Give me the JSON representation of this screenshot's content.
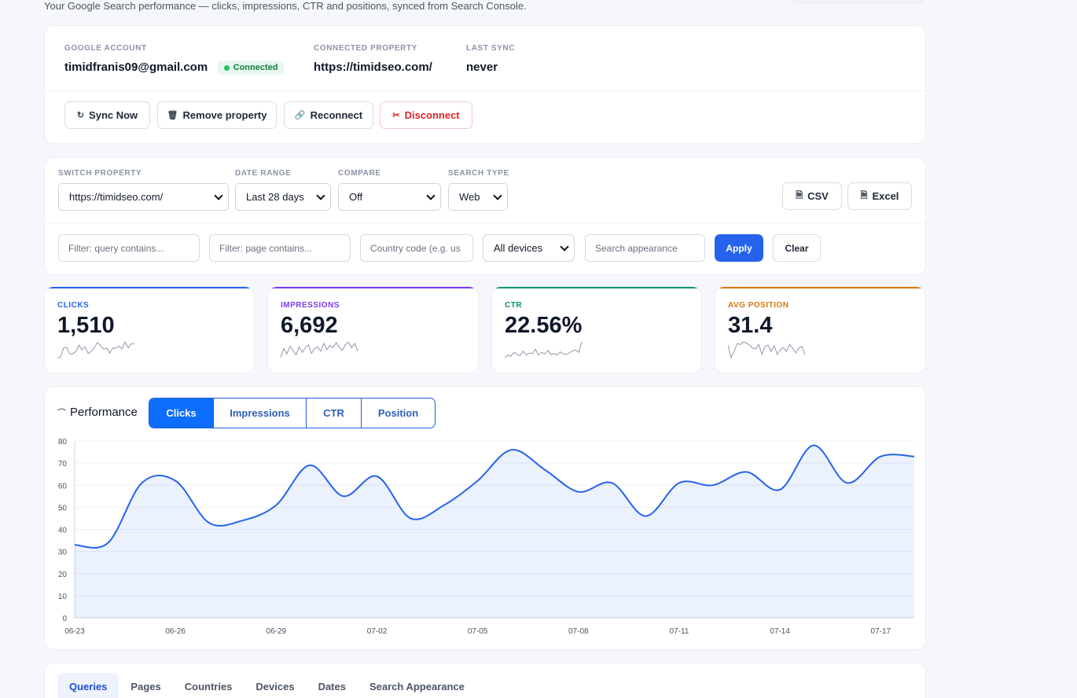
{
  "header": {
    "subtitle": "Your Google Search performance — clicks, impressions, CTR and positions, synced from Search Console."
  },
  "account": {
    "google_label": "GOOGLE ACCOUNT",
    "email": "timidfranis09@gmail.com",
    "status": "Connected",
    "property_label": "CONNECTED PROPERTY",
    "property": "https://timidseo.com/",
    "sync_label": "LAST SYNC",
    "sync_value": "never"
  },
  "actions": {
    "sync": "Sync Now",
    "remove": "Remove property",
    "reconnect": "Reconnect",
    "disconnect": "Disconnect"
  },
  "filters": {
    "property_label": "SWITCH PROPERTY",
    "property_value": "https://timidseo.com/",
    "range_label": "DATE RANGE",
    "range_value": "Last 28 days",
    "compare_label": "COMPARE",
    "compare_value": "Off",
    "type_label": "SEARCH TYPE",
    "type_value": "Web",
    "csv": "CSV",
    "excel": "Excel",
    "query_placeholder": "Filter: query contains...",
    "page_placeholder": "Filter: page contains...",
    "country_placeholder": "Country code (e.g. us",
    "device_value": "All devices",
    "appearance_placeholder": "Search appearance",
    "apply": "Apply",
    "clear": "Clear"
  },
  "kpis": [
    {
      "label": "CLICKS",
      "value": "1,510",
      "color": "#2563eb"
    },
    {
      "label": "IMPRESSIONS",
      "value": "6,692",
      "color": "#7c3aed"
    },
    {
      "label": "CTR",
      "value": "22.56%",
      "color": "#059669"
    },
    {
      "label": "AVG POSITION",
      "value": "31.4",
      "color": "#d97706"
    }
  ],
  "performance": {
    "title": "Performance",
    "tabs": [
      "Clicks",
      "Impressions",
      "CTR",
      "Position"
    ],
    "active_tab": "Clicks"
  },
  "chart_data": {
    "type": "area",
    "x": [
      "06-23",
      "06-24",
      "06-25",
      "06-26",
      "06-27",
      "06-28",
      "06-29",
      "06-30",
      "07-01",
      "07-02",
      "07-03",
      "07-04",
      "07-05",
      "07-06",
      "07-07",
      "07-08",
      "07-09",
      "07-10",
      "07-11",
      "07-12",
      "07-13",
      "07-14",
      "07-15",
      "07-16",
      "07-17",
      "07-18"
    ],
    "x_ticks": [
      "06-23",
      "06-26",
      "06-29",
      "07-02",
      "07-05",
      "07-08",
      "07-11",
      "07-14",
      "07-17"
    ],
    "series": [
      {
        "values": [
          33,
          34,
          61,
          62,
          43,
          44,
          51,
          69,
          55,
          64,
          45,
          51,
          62,
          76,
          67,
          57,
          61,
          46,
          61,
          60,
          66,
          58,
          78,
          61,
          73,
          73
        ]
      }
    ],
    "ylim": [
      0,
      80
    ],
    "y_ticks": [
      0,
      10,
      20,
      30,
      40,
      50,
      60,
      70,
      80
    ],
    "grid": true,
    "color": "#2563eb"
  },
  "sparklines": {
    "clicks": [
      33,
      34,
      61,
      62,
      43,
      44,
      51,
      69,
      55,
      64,
      45,
      51,
      62,
      76,
      67,
      57,
      61,
      46,
      61,
      60,
      66,
      58,
      78,
      61,
      73,
      73
    ],
    "impressions": [
      30,
      55,
      40,
      62,
      50,
      38,
      60,
      45,
      58,
      66,
      42,
      55,
      60,
      48,
      70,
      52,
      64,
      58,
      72,
      60,
      50,
      66,
      74,
      58,
      70,
      48
    ],
    "ctr": [
      30,
      40,
      35,
      50,
      42,
      38,
      55,
      40,
      48,
      45,
      62,
      40,
      50,
      44,
      58,
      42,
      46,
      40,
      52,
      44,
      42,
      48,
      56,
      60,
      50,
      90
    ],
    "position": [
      70,
      30,
      50,
      75,
      72,
      80,
      76,
      70,
      60,
      58,
      72,
      40,
      65,
      70,
      50,
      68,
      40,
      55,
      62,
      50,
      72,
      60,
      45,
      60,
      66,
      40
    ]
  },
  "bottom_tabs": [
    "Queries",
    "Pages",
    "Countries",
    "Devices",
    "Dates",
    "Search Appearance"
  ]
}
